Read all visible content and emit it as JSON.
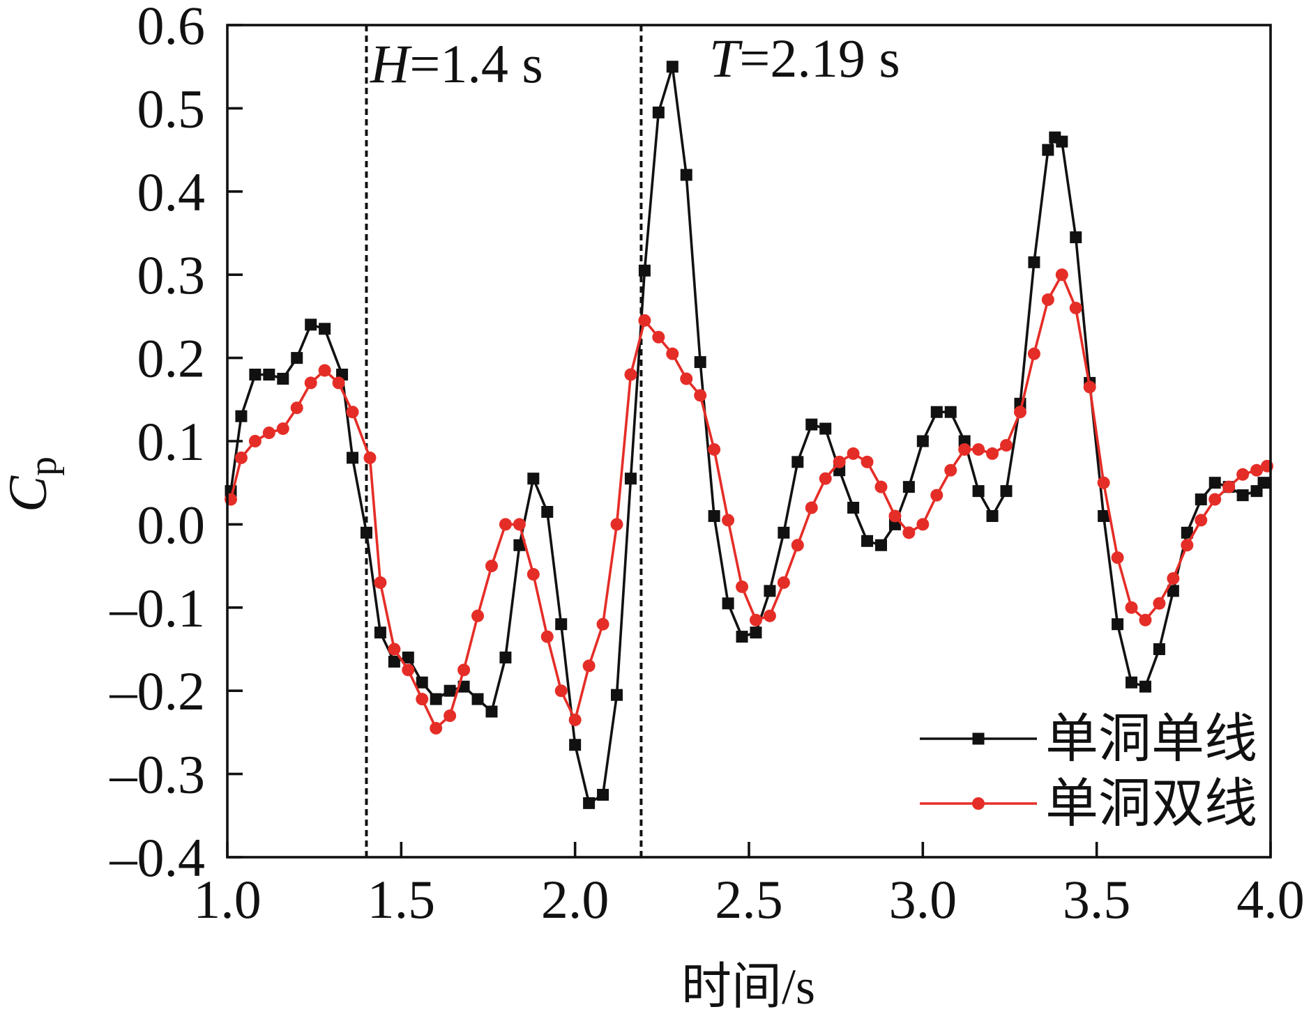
{
  "chart_data": {
    "type": "line",
    "xlabel": "时间/s",
    "ylabel": {
      "main": "C",
      "sub": "p"
    },
    "xlim": [
      1.0,
      4.0
    ],
    "ylim": [
      -0.4,
      0.6
    ],
    "xticks": {
      "values": [
        1.0,
        1.5,
        2.0,
        2.5,
        3.0,
        3.5,
        4.0
      ],
      "labels": [
        "1.0",
        "1.5",
        "2.0",
        "2.5",
        "3.0",
        "3.5",
        "4.0"
      ]
    },
    "yticks": {
      "values": [
        0.6,
        0.5,
        0.4,
        0.3,
        0.2,
        0.1,
        0.0,
        -0.1,
        -0.2,
        -0.3,
        -0.4
      ],
      "labels": [
        "0.6",
        "0.5",
        "0.4",
        "0.3",
        "0.2",
        "0.1",
        "0.0",
        "–0.1",
        "–0.2",
        "–0.3",
        "–0.4"
      ]
    },
    "grid": false,
    "legend_position": "bottom-right",
    "annotations": [
      {
        "symbol": "H",
        "text": "=1.4 s",
        "x": 1.4
      },
      {
        "symbol": "T",
        "text": "=2.19 s",
        "x": 2.19
      }
    ],
    "series": [
      {
        "name": "单洞单线",
        "color": "#111111",
        "marker": "square",
        "x": [
          1.01,
          1.04,
          1.08,
          1.12,
          1.16,
          1.2,
          1.24,
          1.28,
          1.33,
          1.36,
          1.4,
          1.44,
          1.48,
          1.52,
          1.56,
          1.6,
          1.64,
          1.68,
          1.72,
          1.76,
          1.8,
          1.84,
          1.88,
          1.92,
          1.96,
          2.0,
          2.04,
          2.08,
          2.12,
          2.16,
          2.2,
          2.24,
          2.28,
          2.32,
          2.36,
          2.4,
          2.44,
          2.48,
          2.52,
          2.56,
          2.6,
          2.64,
          2.68,
          2.72,
          2.76,
          2.8,
          2.84,
          2.88,
          2.92,
          2.96,
          3.0,
          3.04,
          3.08,
          3.12,
          3.16,
          3.2,
          3.24,
          3.28,
          3.32,
          3.36,
          3.38,
          3.4,
          3.44,
          3.48,
          3.52,
          3.56,
          3.6,
          3.64,
          3.68,
          3.72,
          3.76,
          3.8,
          3.84,
          3.88,
          3.92,
          3.96,
          3.98
        ],
        "y": [
          0.04,
          0.13,
          0.18,
          0.18,
          0.175,
          0.2,
          0.24,
          0.235,
          0.18,
          0.08,
          -0.01,
          -0.13,
          -0.165,
          -0.16,
          -0.19,
          -0.21,
          -0.2,
          -0.195,
          -0.21,
          -0.225,
          -0.16,
          -0.025,
          0.055,
          0.015,
          -0.12,
          -0.265,
          -0.335,
          -0.325,
          -0.205,
          0.055,
          0.305,
          0.495,
          0.55,
          0.42,
          0.195,
          0.01,
          -0.095,
          -0.135,
          -0.13,
          -0.08,
          -0.01,
          0.075,
          0.12,
          0.115,
          0.065,
          0.02,
          -0.02,
          -0.025,
          0.0,
          0.045,
          0.1,
          0.135,
          0.135,
          0.1,
          0.04,
          0.01,
          0.04,
          0.145,
          0.315,
          0.45,
          0.465,
          0.46,
          0.345,
          0.17,
          0.01,
          -0.12,
          -0.19,
          -0.195,
          -0.15,
          -0.08,
          -0.01,
          0.03,
          0.05,
          0.045,
          0.035,
          0.04,
          0.05
        ]
      },
      {
        "name": "单洞双线",
        "color": "#e52d27",
        "marker": "circle",
        "x": [
          1.01,
          1.04,
          1.08,
          1.12,
          1.16,
          1.2,
          1.24,
          1.28,
          1.32,
          1.36,
          1.41,
          1.44,
          1.48,
          1.52,
          1.56,
          1.6,
          1.64,
          1.68,
          1.72,
          1.76,
          1.8,
          1.84,
          1.88,
          1.92,
          1.96,
          2.0,
          2.04,
          2.08,
          2.12,
          2.16,
          2.2,
          2.24,
          2.28,
          2.32,
          2.36,
          2.4,
          2.44,
          2.48,
          2.52,
          2.56,
          2.6,
          2.64,
          2.68,
          2.72,
          2.76,
          2.8,
          2.84,
          2.88,
          2.92,
          2.96,
          3.0,
          3.04,
          3.08,
          3.12,
          3.16,
          3.2,
          3.24,
          3.28,
          3.32,
          3.36,
          3.4,
          3.44,
          3.48,
          3.52,
          3.56,
          3.6,
          3.64,
          3.68,
          3.72,
          3.76,
          3.8,
          3.84,
          3.88,
          3.92,
          3.96,
          3.99
        ],
        "y": [
          0.03,
          0.08,
          0.1,
          0.11,
          0.115,
          0.14,
          0.17,
          0.185,
          0.17,
          0.135,
          0.08,
          -0.07,
          -0.15,
          -0.175,
          -0.21,
          -0.245,
          -0.23,
          -0.175,
          -0.11,
          -0.05,
          0.0,
          0.0,
          -0.06,
          -0.135,
          -0.2,
          -0.235,
          -0.17,
          -0.12,
          0.0,
          0.18,
          0.245,
          0.225,
          0.205,
          0.175,
          0.155,
          0.09,
          0.005,
          -0.075,
          -0.115,
          -0.11,
          -0.07,
          -0.025,
          0.02,
          0.055,
          0.075,
          0.085,
          0.075,
          0.045,
          0.01,
          -0.01,
          0.0,
          0.035,
          0.065,
          0.09,
          0.09,
          0.085,
          0.095,
          0.135,
          0.205,
          0.27,
          0.3,
          0.26,
          0.165,
          0.05,
          -0.04,
          -0.1,
          -0.115,
          -0.095,
          -0.065,
          -0.025,
          0.005,
          0.03,
          0.045,
          0.06,
          0.065,
          0.07
        ]
      }
    ]
  }
}
